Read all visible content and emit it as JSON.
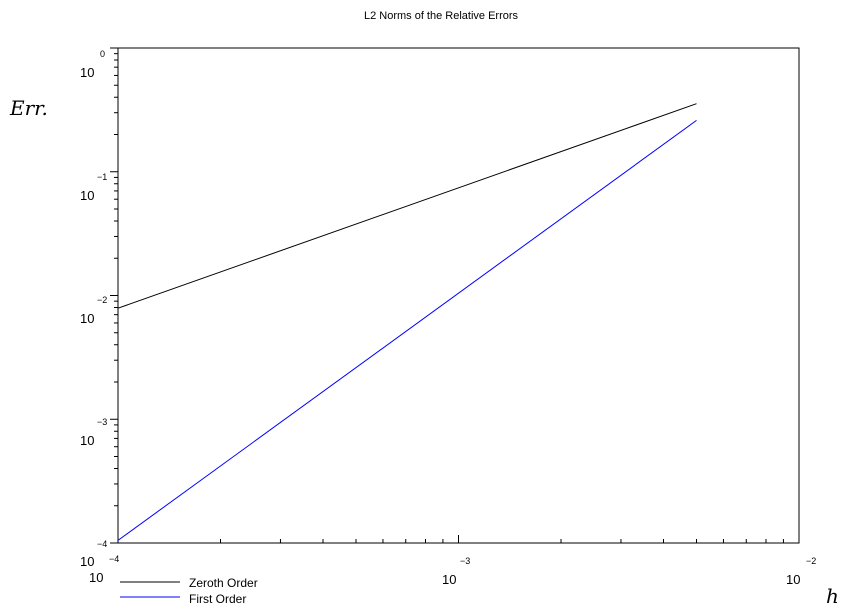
{
  "chart_data": {
    "type": "line",
    "title": "L2 Norms of the Relative Errors",
    "xlabel": "h",
    "ylabel": "Err.",
    "xscale": "log",
    "yscale": "log",
    "xlim": [
      0.0001,
      0.01
    ],
    "ylim": [
      0.0001,
      1
    ],
    "x_ticks": [
      {
        "base": "10",
        "exp": "−4"
      },
      {
        "base": "10",
        "exp": "−3"
      },
      {
        "base": "10",
        "exp": "−2"
      }
    ],
    "y_ticks": [
      {
        "base": "10",
        "exp": "0"
      },
      {
        "base": "10",
        "exp": "−1"
      },
      {
        "base": "10",
        "exp": "−2"
      },
      {
        "base": "10",
        "exp": "−3"
      },
      {
        "base": "10",
        "exp": "−4"
      }
    ],
    "grid": false,
    "legend_position": "bottom-left, below axes",
    "series": [
      {
        "name": "Zeroth Order",
        "color": "#000000",
        "x": [
          0.0001,
          0.005
        ],
        "y": [
          0.0079,
          0.355
        ]
      },
      {
        "name": "First Order",
        "color": "#0000ff",
        "x": [
          0.0001,
          0.005
        ],
        "y": [
          0.000105,
          0.26
        ]
      }
    ]
  }
}
